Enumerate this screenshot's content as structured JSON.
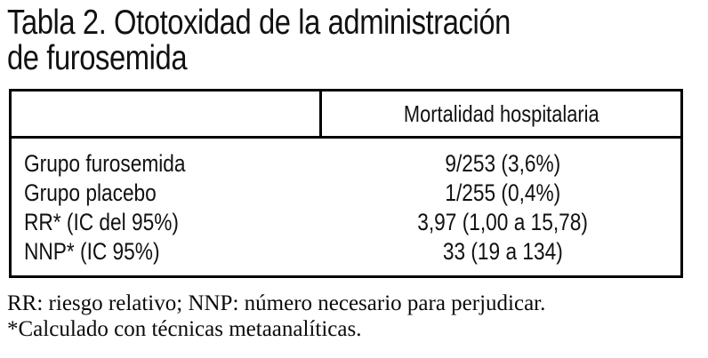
{
  "title": {
    "line1": "Tabla 2. Ototoxidad de la administración",
    "line2": "de furosemida"
  },
  "table": {
    "header": {
      "left": "",
      "right": "Mortalidad hospitalaria"
    },
    "rows": [
      {
        "label": "Grupo furosemida",
        "value": "9/253 (3,6%)"
      },
      {
        "label": "Grupo placebo",
        "value": "1/255 (0,4%)"
      },
      {
        "label": "RR* (IC del 95%)",
        "value": "3,97 (1,00 a 15,78)"
      },
      {
        "label": "NNP* (IC 95%)",
        "value": "33 (19 a 134)"
      }
    ]
  },
  "footnotes": [
    "RR: riesgo relativo; NNP: número necesario para perjudicar.",
    "*Calculado con técnicas metaanalíticas."
  ],
  "colors": {
    "text": "#111111",
    "background": "#ffffff",
    "border": "#000000"
  }
}
